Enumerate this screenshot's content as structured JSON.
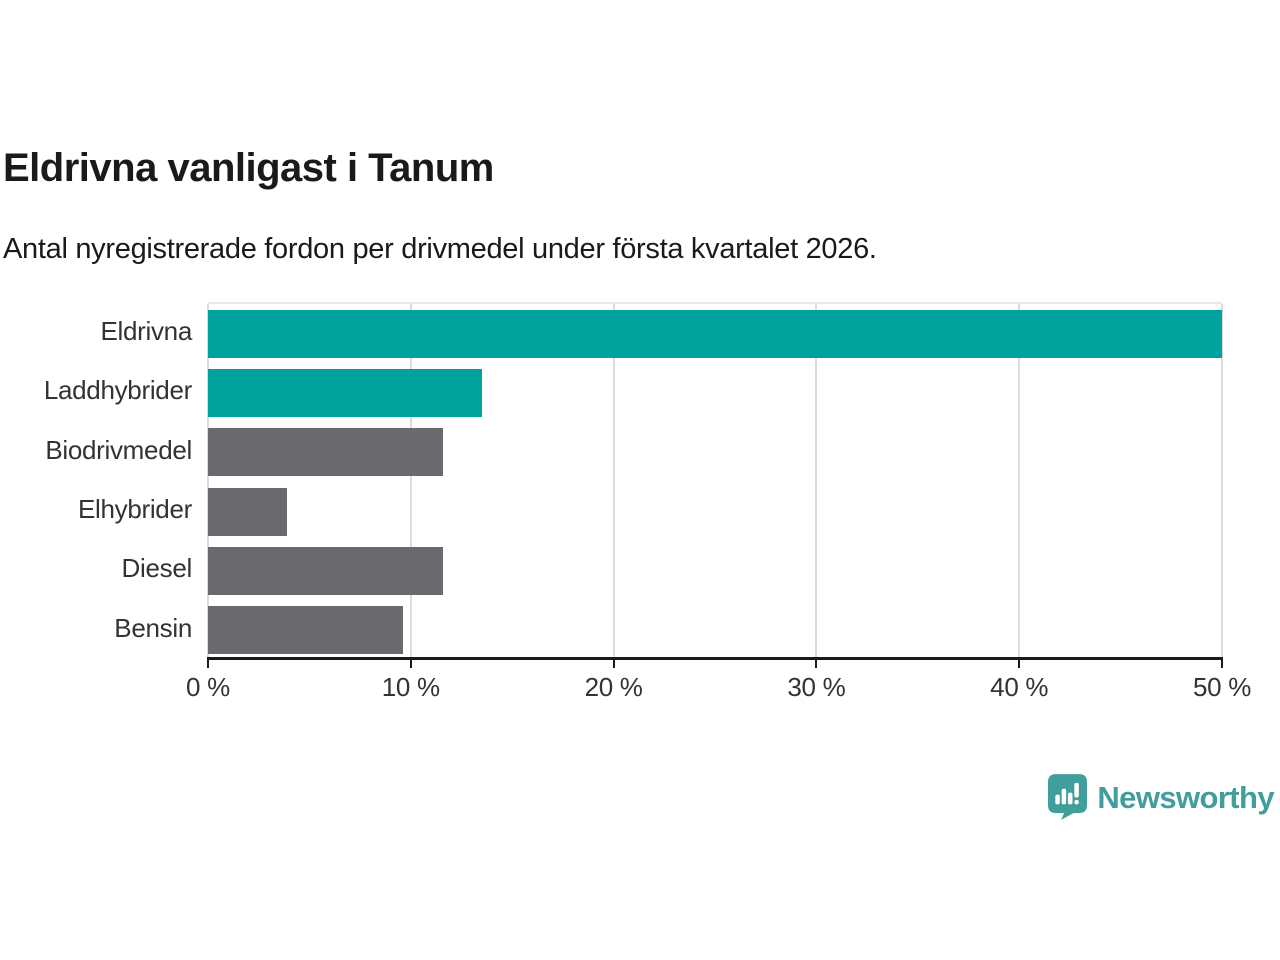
{
  "header": {
    "title": "Eldrivna vanligast i Tanum",
    "subtitle": "Antal nyregistrerade fordon per drivmedel under första kvartalet 2026."
  },
  "chart_data": {
    "type": "bar",
    "orientation": "horizontal",
    "title": "Eldrivna vanligast i Tanum",
    "subtitle": "Antal nyregistrerade fordon per drivmedel under första kvartalet 2026.",
    "xlabel": "",
    "ylabel": "",
    "categories": [
      "Eldrivna",
      "Laddhybrider",
      "Biodrivmedel",
      "Elhybrider",
      "Diesel",
      "Bensin"
    ],
    "values": [
      50.0,
      13.5,
      11.6,
      3.9,
      11.6,
      9.6
    ],
    "unit": "%",
    "bar_colors": [
      "#00a39b",
      "#00a39b",
      "#6a6a6e",
      "#6a6a6e",
      "#6a6a6e",
      "#6a6a6e"
    ],
    "highlight_color": "#00a39b",
    "default_color": "#6a6a6e",
    "xlim": [
      0,
      50
    ],
    "x_ticks": [
      {
        "value": 0,
        "label": "0 %"
      },
      {
        "value": 10,
        "label": "10 %"
      },
      {
        "value": 20,
        "label": "20 %"
      },
      {
        "value": 30,
        "label": "30 %"
      },
      {
        "value": 40,
        "label": "40 %"
      },
      {
        "value": 50,
        "label": "50 %"
      }
    ],
    "grid": "vertical-gridlines",
    "gridline_color": "#dcdcdc",
    "axis_line_color": "#1a1a1a",
    "legend": "none"
  },
  "footer": {
    "brand": "Newsworthy",
    "logo_color": "#419e9c",
    "logo_icon": "newsworthy-speech-bubble-bar-chart-icon"
  }
}
